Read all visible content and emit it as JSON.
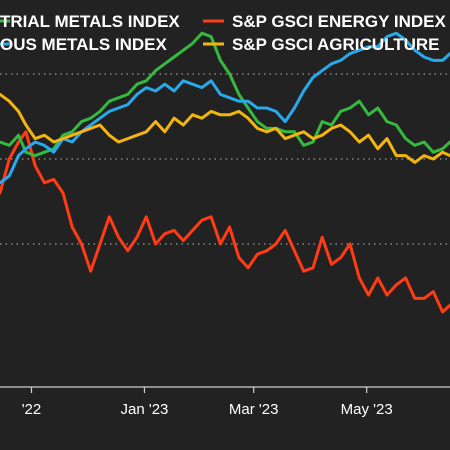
{
  "chart_data": {
    "type": "line",
    "title": "",
    "xlabel": "",
    "ylabel": "",
    "x_tick_labels": [
      "'22",
      "Jan '23",
      "Mar '23",
      "May '23"
    ],
    "x_ticks": [
      "2022-11-01",
      "2023-01-01",
      "2023-03-01",
      "2023-05-01"
    ],
    "xlim": [
      "2022-10-15",
      "2023-06-15"
    ],
    "ylim": [
      0,
      100
    ],
    "gridlines_dotted_y": [
      40,
      65,
      90
    ],
    "legend": {
      "placement": "top",
      "entries": [
        {
          "label": "TRIAL METALS INDEX",
          "color": "#35b93f"
        },
        {
          "label": "S&P GSCI ENERGY INDEX",
          "color": "#ff3c14"
        },
        {
          "label": "OUS METALS INDEX",
          "color": "#28a9ec"
        },
        {
          "label": "S&P GSCI AGRICULTURE",
          "color": "#f5b50f"
        }
      ]
    },
    "series": [
      {
        "name": "S&P GSCI ENERGY INDEX",
        "color": "#ff3c14",
        "dates": [
          "2022-10-15",
          "2022-10-20",
          "2022-10-25",
          "2022-10-29",
          "2022-11-03",
          "2022-11-08",
          "2022-11-13",
          "2022-11-18",
          "2022-11-23",
          "2022-11-28",
          "2022-12-03",
          "2022-12-08",
          "2022-12-13",
          "2022-12-18",
          "2022-12-23",
          "2022-12-28",
          "2023-01-02",
          "2023-01-07",
          "2023-01-12",
          "2023-01-17",
          "2023-01-22",
          "2023-01-27",
          "2023-02-01",
          "2023-02-06",
          "2023-02-11",
          "2023-02-16",
          "2023-02-21",
          "2023-02-26",
          "2023-03-03",
          "2023-03-08",
          "2023-03-13",
          "2023-03-18",
          "2023-03-23",
          "2023-03-28",
          "2023-04-02",
          "2023-04-07",
          "2023-04-12",
          "2023-04-17",
          "2023-04-22",
          "2023-04-27",
          "2023-05-02",
          "2023-05-07",
          "2023-05-12",
          "2023-05-17",
          "2023-05-22",
          "2023-05-27",
          "2023-06-01",
          "2023-06-06",
          "2023-06-11",
          "2023-06-15"
        ],
        "values": [
          55,
          65,
          70,
          73,
          63,
          58,
          59,
          55,
          45,
          40,
          32,
          40,
          48,
          42,
          38,
          42,
          48,
          40,
          43,
          44,
          41,
          44,
          47,
          48,
          40,
          45,
          36,
          33,
          37,
          38,
          40,
          44,
          38,
          32,
          33,
          42,
          34,
          36,
          40,
          30,
          25,
          30,
          25,
          28,
          30,
          24,
          24,
          26,
          20,
          22
        ]
      },
      {
        "name": "",
        "color": "#35b93f",
        "dates": [
          "2022-10-15",
          "2022-10-20",
          "2022-10-25",
          "2022-10-29",
          "2022-11-03",
          "2022-11-08",
          "2022-11-13",
          "2022-11-18",
          "2022-11-23",
          "2022-11-28",
          "2022-12-03",
          "2022-12-08",
          "2022-12-13",
          "2022-12-18",
          "2022-12-23",
          "2022-12-28",
          "2023-01-02",
          "2023-01-07",
          "2023-01-12",
          "2023-01-17",
          "2023-01-22",
          "2023-01-27",
          "2023-02-01",
          "2023-02-06",
          "2023-02-11",
          "2023-02-16",
          "2023-02-21",
          "2023-02-26",
          "2023-03-03",
          "2023-03-08",
          "2023-03-13",
          "2023-03-18",
          "2023-03-23",
          "2023-03-28",
          "2023-04-02",
          "2023-04-07",
          "2023-04-12",
          "2023-04-17",
          "2023-04-22",
          "2023-04-27",
          "2023-05-02",
          "2023-05-07",
          "2023-05-12",
          "2023-05-17",
          "2023-05-22",
          "2023-05-27",
          "2023-06-01",
          "2023-06-06",
          "2023-06-11",
          "2023-06-15"
        ],
        "values": [
          70,
          69,
          72,
          67,
          66,
          67,
          68,
          72,
          73,
          76,
          77,
          79,
          82,
          83,
          84,
          87,
          88,
          91,
          93,
          95,
          97,
          99,
          102,
          101,
          94,
          90,
          84,
          80,
          76,
          74,
          74,
          73,
          73,
          69,
          70,
          76,
          75,
          79,
          80,
          82,
          78,
          80,
          76,
          75,
          71,
          69,
          70,
          67,
          68,
          70
        ]
      },
      {
        "name": "",
        "color": "#28a9ec",
        "dates": [
          "2022-10-15",
          "2022-10-20",
          "2022-10-25",
          "2022-10-29",
          "2022-11-03",
          "2022-11-08",
          "2022-11-13",
          "2022-11-18",
          "2022-11-23",
          "2022-11-28",
          "2022-12-03",
          "2022-12-08",
          "2022-12-13",
          "2022-12-18",
          "2022-12-23",
          "2022-12-28",
          "2023-01-02",
          "2023-01-07",
          "2023-01-12",
          "2023-01-17",
          "2023-01-22",
          "2023-01-27",
          "2023-02-01",
          "2023-02-06",
          "2023-02-11",
          "2023-02-16",
          "2023-02-21",
          "2023-02-26",
          "2023-03-03",
          "2023-03-08",
          "2023-03-13",
          "2023-03-18",
          "2023-03-23",
          "2023-03-28",
          "2023-04-02",
          "2023-04-07",
          "2023-04-12",
          "2023-04-17",
          "2023-04-22",
          "2023-04-27",
          "2023-05-02",
          "2023-05-07",
          "2023-05-12",
          "2023-05-17",
          "2023-05-22",
          "2023-05-27",
          "2023-06-01",
          "2023-06-06",
          "2023-06-11",
          "2023-06-15"
        ],
        "values": [
          58,
          60,
          66,
          68,
          70,
          69,
          67,
          71,
          70,
          73,
          75,
          77,
          79,
          80,
          81,
          84,
          86,
          85,
          87,
          85,
          88,
          87,
          86,
          88,
          84,
          83,
          82,
          82,
          80,
          80,
          79,
          76,
          80,
          85,
          89,
          91,
          93,
          94,
          96,
          97,
          98,
          98,
          101,
          102,
          100,
          97,
          95,
          94,
          94,
          96
        ]
      },
      {
        "name": "S&P GSCI AGRICULTURE",
        "color": "#f5b50f",
        "dates": [
          "2022-10-15",
          "2022-10-20",
          "2022-10-25",
          "2022-10-29",
          "2022-11-03",
          "2022-11-08",
          "2022-11-13",
          "2022-11-18",
          "2022-11-23",
          "2022-11-28",
          "2022-12-03",
          "2022-12-08",
          "2022-12-13",
          "2022-12-18",
          "2022-12-23",
          "2022-12-28",
          "2023-01-02",
          "2023-01-07",
          "2023-01-12",
          "2023-01-17",
          "2023-01-22",
          "2023-01-27",
          "2023-02-01",
          "2023-02-06",
          "2023-02-11",
          "2023-02-16",
          "2023-02-21",
          "2023-02-26",
          "2023-03-03",
          "2023-03-08",
          "2023-03-13",
          "2023-03-18",
          "2023-03-23",
          "2023-03-28",
          "2023-04-02",
          "2023-04-07",
          "2023-04-12",
          "2023-04-17",
          "2023-04-22",
          "2023-04-27",
          "2023-05-02",
          "2023-05-07",
          "2023-05-12",
          "2023-05-17",
          "2023-05-22",
          "2023-05-27",
          "2023-06-01",
          "2023-06-06",
          "2023-06-11",
          "2023-06-15"
        ],
        "values": [
          84,
          82,
          79,
          75,
          71,
          72,
          70,
          71,
          72,
          73,
          74,
          75,
          72,
          70,
          71,
          72,
          73,
          76,
          73,
          77,
          75,
          78,
          77,
          79,
          78,
          78,
          79,
          77,
          74,
          73,
          74,
          71,
          72,
          73,
          71,
          72,
          74,
          75,
          73,
          70,
          72,
          68,
          71,
          66,
          66,
          64,
          66,
          65,
          67,
          66
        ]
      }
    ]
  }
}
